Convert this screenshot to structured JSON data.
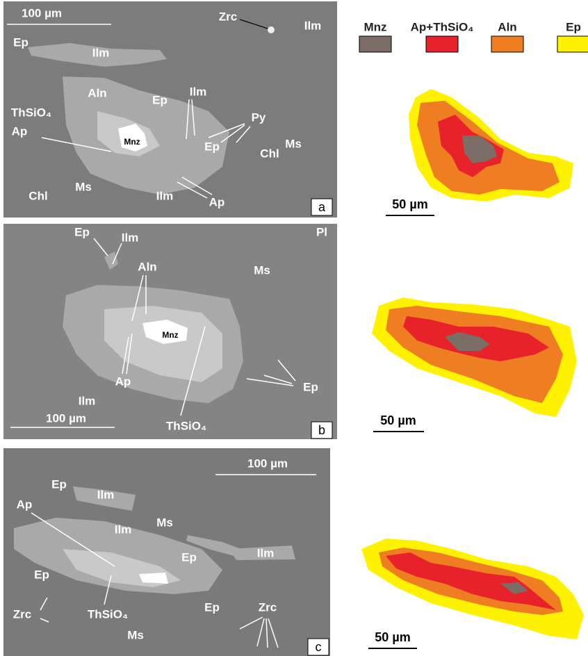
{
  "panels": [
    {
      "letter": "a",
      "scale": "100 µm",
      "labels": [
        "Zrc",
        "Ilm",
        "Ep",
        "Ilm",
        "Aln",
        "Ep",
        "Ilm",
        "ThSiO₄",
        "Py",
        "Ap",
        "Mnz",
        "Ep",
        "Chl",
        "Ms",
        "Chl",
        "Ms",
        "Ilm",
        "Ap"
      ]
    },
    {
      "letter": "b",
      "scale": "100 µm",
      "labels": [
        "Pl",
        "Ep",
        "Ilm",
        "Aln",
        "Ms",
        "Mnz",
        "Ap",
        "Ep",
        "Ilm",
        "ThSiO₄"
      ]
    },
    {
      "letter": "c",
      "scale": "100 µm",
      "labels": [
        "Ep",
        "Ilm",
        "Ap",
        "Ilm",
        "Ms",
        "Ep",
        "Ilm",
        "Ep",
        "ThSiO₄",
        "Ep",
        "Zrc",
        "Zrc",
        "Ms"
      ]
    }
  ],
  "legend": [
    {
      "name": "Mnz",
      "color": "#7a6e66"
    },
    {
      "name": "Ap+ThSiO₄",
      "color": "#e8222a"
    },
    {
      "name": "Aln",
      "color": "#ef7d22"
    },
    {
      "name": "Ep",
      "color": "#fff200"
    }
  ],
  "maps": [
    {
      "scale": "50 µm"
    },
    {
      "scale": "50 µm"
    },
    {
      "scale": "50 µm"
    }
  ]
}
